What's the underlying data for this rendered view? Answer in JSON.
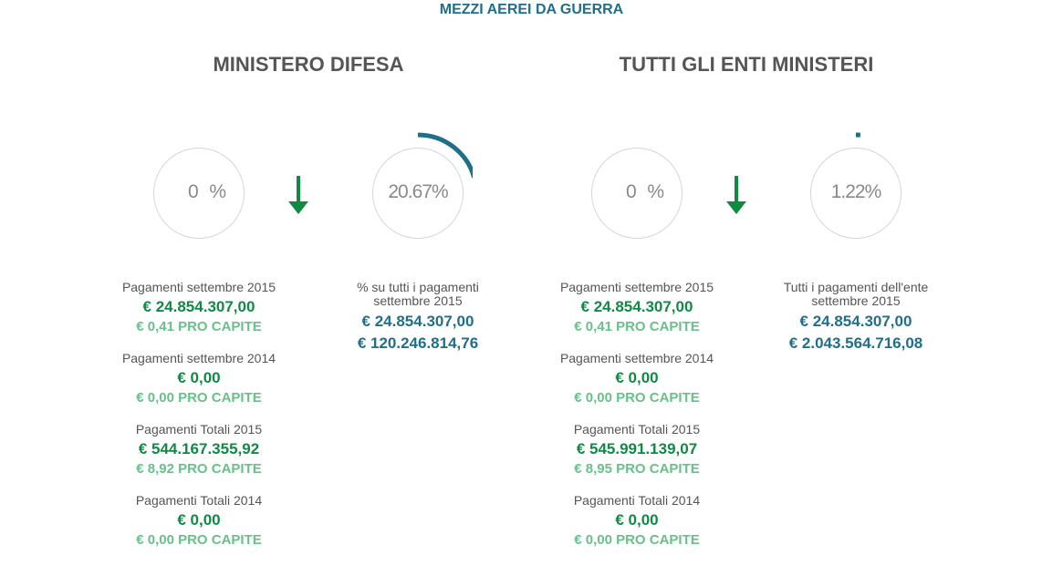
{
  "page_title": "MEZZI AEREI DA GUERRA",
  "colors": {
    "title_blue": "#1f6f8b",
    "green": "#0f8a44",
    "light_green": "#6abf8a",
    "text_gray": "#555555"
  },
  "sections": [
    {
      "title": "MINISTERO DIFESA",
      "change_percent": "0",
      "change_unit": "%",
      "share_ring_value": 20.67,
      "share_percent_label": "20.67",
      "share_unit": "%",
      "share_label_line1": "% su tutti i pagamenti",
      "share_label_line2": "settembre 2015",
      "share_amount": "€ 24.854.307,00",
      "share_total": "€ 120.246.814,76",
      "payments": [
        {
          "label": "Pagamenti settembre 2015",
          "amount": "€ 24.854.307,00",
          "per_capita": "€ 0,41 PRO CAPITE"
        },
        {
          "label": "Pagamenti settembre 2014",
          "amount": "€ 0,00",
          "per_capita": "€ 0,00 PRO CAPITE"
        },
        {
          "label": "Pagamenti Totali 2015",
          "amount": "€ 544.167.355,92",
          "per_capita": "€ 8,92 PRO CAPITE"
        },
        {
          "label": "Pagamenti Totali 2014",
          "amount": "€ 0,00",
          "per_capita": "€ 0,00 PRO CAPITE"
        }
      ]
    },
    {
      "title": "TUTTI GLI ENTI MINISTERI",
      "change_percent": "0",
      "change_unit": "%",
      "share_ring_value": 1.22,
      "share_percent_label": "1.22",
      "share_unit": "%",
      "share_label_line1": "Tutti i pagamenti dell'ente",
      "share_label_line2": "settembre 2015",
      "share_amount": "€ 24.854.307,00",
      "share_total": "€ 2.043.564.716,08",
      "payments": [
        {
          "label": "Pagamenti settembre 2015",
          "amount": "€ 24.854.307,00",
          "per_capita": "€ 0,41 PRO CAPITE"
        },
        {
          "label": "Pagamenti settembre 2014",
          "amount": "€ 0,00",
          "per_capita": "€ 0,00 PRO CAPITE"
        },
        {
          "label": "Pagamenti Totali 2015",
          "amount": "€ 545.991.139,07",
          "per_capita": "€ 8,95 PRO CAPITE"
        },
        {
          "label": "Pagamenti Totali 2014",
          "amount": "€ 0,00",
          "per_capita": "€ 0,00 PRO CAPITE"
        }
      ]
    }
  ]
}
